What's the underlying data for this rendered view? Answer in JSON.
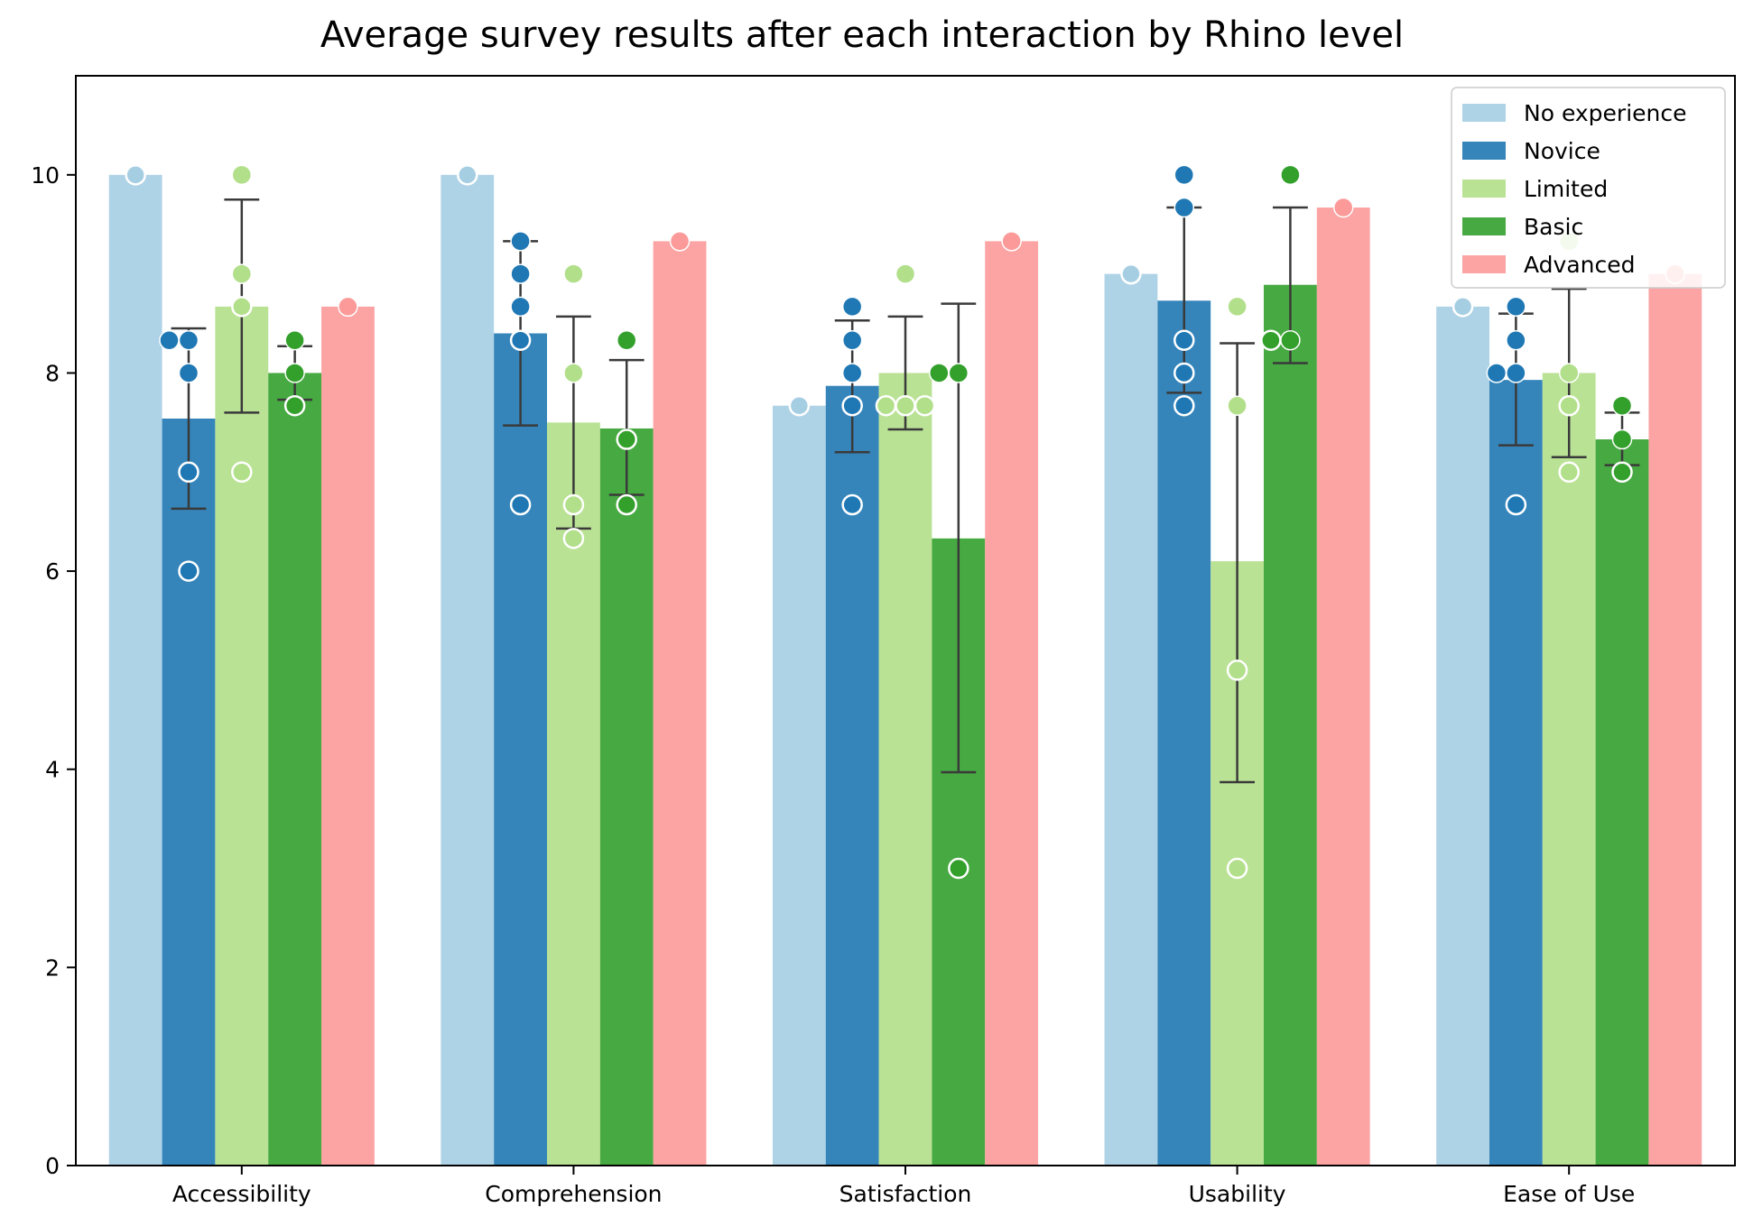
{
  "chart_data": {
    "type": "bar",
    "title": "Average survey results after each interaction by Rhino level",
    "xlabel": "",
    "ylabel": "",
    "ylim": [
      0,
      11
    ],
    "yticks": [
      0,
      2,
      4,
      6,
      8,
      10
    ],
    "grid": false,
    "legend_position": "top-right",
    "categories": [
      "Accessibility",
      "Comprehension",
      "Satisfaction",
      "Usability",
      "Ease of Use"
    ],
    "series": [
      {
        "name": "No experience",
        "color": "#a6cee3",
        "values": [
          10.0,
          10.0,
          7.67,
          9.0,
          8.67
        ],
        "error_low": [
          null,
          null,
          null,
          null,
          null
        ],
        "error_high": [
          null,
          null,
          null,
          null,
          null
        ],
        "points_filled": [
          [],
          [],
          [],
          [],
          []
        ],
        "points_hollow": [
          [
            10.0
          ],
          [
            10.0
          ],
          [
            7.67
          ],
          [
            9.0
          ],
          [
            8.67
          ]
        ]
      },
      {
        "name": "Novice",
        "color": "#1f78b4",
        "values": [
          7.54,
          8.4,
          7.87,
          8.73,
          7.93
        ],
        "error_low": [
          6.63,
          7.47,
          7.2,
          7.8,
          7.27
        ],
        "error_high": [
          8.45,
          9.33,
          8.53,
          9.67,
          8.6
        ],
        "points_filled": [
          [
            8.33,
            8.33,
            8.0
          ],
          [
            9.33,
            9.0,
            8.67
          ],
          [
            8.67,
            8.33,
            8.0
          ],
          [
            10.0,
            9.67
          ],
          [
            8.67,
            8.33,
            8.0,
            8.0
          ]
        ],
        "points_hollow": [
          [
            7.0,
            6.0
          ],
          [
            8.33,
            6.67
          ],
          [
            7.67,
            6.67
          ],
          [
            8.33,
            8.0,
            7.67
          ],
          [
            6.67
          ]
        ]
      },
      {
        "name": "Limited",
        "color": "#b2df8a",
        "values": [
          8.67,
          7.5,
          8.0,
          6.1,
          8.0
        ],
        "error_low": [
          7.6,
          6.43,
          7.43,
          3.87,
          7.15
        ],
        "error_high": [
          9.75,
          8.57,
          8.57,
          8.3,
          8.85
        ],
        "points_filled": [
          [
            10.0,
            9.0
          ],
          [
            9.0,
            8.0
          ],
          [
            9.0
          ],
          [
            8.67,
            7.67
          ],
          [
            9.33,
            8.0
          ]
        ],
        "points_hollow": [
          [
            8.67,
            7.0
          ],
          [
            6.67,
            6.33
          ],
          [
            7.67,
            7.67,
            7.67
          ],
          [
            5.0,
            3.0
          ],
          [
            7.67,
            7.0
          ]
        ]
      },
      {
        "name": "Basic",
        "color": "#33a02c",
        "values": [
          8.0,
          7.44,
          6.33,
          8.89,
          7.33
        ],
        "error_low": [
          7.73,
          6.77,
          3.97,
          8.1,
          7.07
        ],
        "error_high": [
          8.27,
          8.13,
          8.7,
          9.67,
          7.6
        ],
        "points_filled": [
          [
            8.33,
            8.0
          ],
          [
            8.33
          ],
          [
            8.0,
            8.0
          ],
          [
            10.0,
            8.33
          ],
          [
            7.67,
            7.33
          ]
        ],
        "points_hollow": [
          [
            7.67
          ],
          [
            7.33,
            6.67
          ],
          [
            3.0
          ],
          [
            8.33
          ],
          [
            7.0
          ]
        ]
      },
      {
        "name": "Advanced",
        "color": "#fb9a99",
        "values": [
          8.67,
          9.33,
          9.33,
          9.67,
          9.0
        ],
        "error_low": [
          null,
          null,
          null,
          null,
          null
        ],
        "error_high": [
          null,
          null,
          null,
          null,
          null
        ],
        "points_filled": [
          [
            8.67
          ],
          [
            9.33
          ],
          [
            9.33
          ],
          [
            9.67
          ],
          [
            9.0
          ]
        ],
        "points_hollow": [
          [],
          [],
          [],
          [],
          []
        ]
      }
    ]
  }
}
